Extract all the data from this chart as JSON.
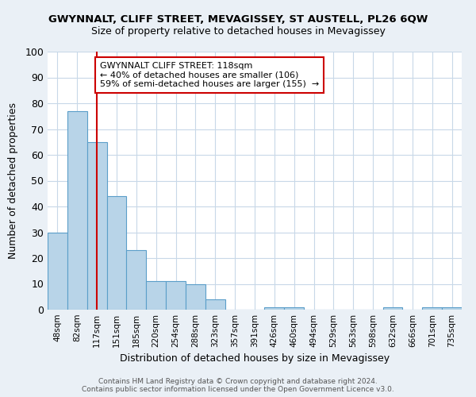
{
  "title": "GWYNNALT, CLIFF STREET, MEVAGISSEY, ST AUSTELL, PL26 6QW",
  "subtitle": "Size of property relative to detached houses in Mevagissey",
  "xlabel": "Distribution of detached houses by size in Mevagissey",
  "ylabel": "Number of detached properties",
  "bin_labels": [
    "48sqm",
    "82sqm",
    "117sqm",
    "151sqm",
    "185sqm",
    "220sqm",
    "254sqm",
    "288sqm",
    "323sqm",
    "357sqm",
    "391sqm",
    "426sqm",
    "460sqm",
    "494sqm",
    "529sqm",
    "563sqm",
    "598sqm",
    "632sqm",
    "666sqm",
    "701sqm",
    "735sqm"
  ],
  "bar_heights": [
    30,
    77,
    65,
    44,
    23,
    11,
    11,
    10,
    4,
    0,
    0,
    1,
    1,
    0,
    0,
    0,
    0,
    1,
    0,
    1,
    1
  ],
  "bar_color": "#b8d4e8",
  "bar_edge_color": "#5b9ec9",
  "vline_x": 2,
  "vline_color": "#cc0000",
  "annotation_line1": "GWYNNALT CLIFF STREET: 118sqm",
  "annotation_line2": "← 40% of detached houses are smaller (106)",
  "annotation_line3": "59% of semi-detached houses are larger (155)  →",
  "annotation_box_color": "#ffffff",
  "annotation_box_edge": "#cc0000",
  "ylim": [
    0,
    100
  ],
  "yticks": [
    0,
    10,
    20,
    30,
    40,
    50,
    60,
    70,
    80,
    90,
    100
  ],
  "footer1": "Contains HM Land Registry data © Crown copyright and database right 2024.",
  "footer2": "Contains public sector information licensed under the Open Government Licence v3.0.",
  "bg_color": "#eaf0f6",
  "plot_bg_color": "#ffffff",
  "grid_color": "#c8d8e8",
  "title_fontsize": 9.5,
  "subtitle_fontsize": 9.0
}
